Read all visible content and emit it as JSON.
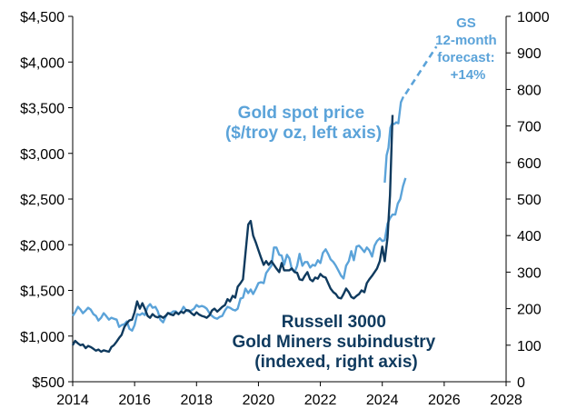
{
  "chart_data": {
    "type": "line",
    "x_unit": "year",
    "xlim": [
      2014,
      2028
    ],
    "x_ticks": [
      2014,
      2016,
      2018,
      2020,
      2022,
      2024,
      2026,
      2028
    ],
    "x_tick_labels": [
      "2014",
      "2016",
      "2018",
      "2020",
      "2022",
      "2024",
      "2026",
      "2028"
    ],
    "ylim_left": [
      500,
      4500
    ],
    "y_ticks_left": [
      500,
      1000,
      1500,
      2000,
      2500,
      3000,
      3500,
      4000,
      4500
    ],
    "y_tick_labels_left": [
      "$500",
      "$1,000",
      "$1,500",
      "$2,000",
      "$2,500",
      "$3,000",
      "$3,500",
      "$4,000",
      "$4,500"
    ],
    "ylim_right": [
      0,
      1000
    ],
    "y_ticks_right": [
      0,
      100,
      200,
      300,
      400,
      500,
      600,
      700,
      800,
      900,
      1000
    ],
    "y_tick_labels_right": [
      "0",
      "100",
      "200",
      "300",
      "400",
      "500",
      "600",
      "700",
      "800",
      "900",
      "1000"
    ],
    "series": [
      {
        "name": "gold-spot",
        "axis": "left",
        "color": "#5BA3D9",
        "label_lines": [
          "Gold spot price",
          "($/troy oz, left axis)"
        ],
        "points": [
          [
            2014.0,
            1220
          ],
          [
            2014.08,
            1260
          ],
          [
            2014.17,
            1320
          ],
          [
            2014.25,
            1290
          ],
          [
            2014.33,
            1250
          ],
          [
            2014.42,
            1280
          ],
          [
            2014.5,
            1310
          ],
          [
            2014.58,
            1290
          ],
          [
            2014.67,
            1240
          ],
          [
            2014.75,
            1220
          ],
          [
            2014.83,
            1170
          ],
          [
            2014.92,
            1200
          ],
          [
            2015.0,
            1250
          ],
          [
            2015.08,
            1220
          ],
          [
            2015.17,
            1180
          ],
          [
            2015.25,
            1200
          ],
          [
            2015.33,
            1190
          ],
          [
            2015.42,
            1180
          ],
          [
            2015.5,
            1100
          ],
          [
            2015.58,
            1120
          ],
          [
            2015.67,
            1130
          ],
          [
            2015.75,
            1160
          ],
          [
            2015.83,
            1080
          ],
          [
            2015.92,
            1060
          ],
          [
            2016.0,
            1120
          ],
          [
            2016.08,
            1240
          ],
          [
            2016.17,
            1230
          ],
          [
            2016.25,
            1250
          ],
          [
            2016.33,
            1230
          ],
          [
            2016.42,
            1320
          ],
          [
            2016.5,
            1350
          ],
          [
            2016.58,
            1310
          ],
          [
            2016.67,
            1320
          ],
          [
            2016.75,
            1270
          ],
          [
            2016.83,
            1180
          ],
          [
            2016.92,
            1150
          ],
          [
            2017.0,
            1210
          ],
          [
            2017.08,
            1250
          ],
          [
            2017.17,
            1250
          ],
          [
            2017.25,
            1270
          ],
          [
            2017.33,
            1270
          ],
          [
            2017.42,
            1240
          ],
          [
            2017.5,
            1270
          ],
          [
            2017.58,
            1320
          ],
          [
            2017.67,
            1280
          ],
          [
            2017.75,
            1270
          ],
          [
            2017.83,
            1280
          ],
          [
            2017.92,
            1300
          ],
          [
            2018.0,
            1340
          ],
          [
            2018.08,
            1320
          ],
          [
            2018.17,
            1330
          ],
          [
            2018.25,
            1320
          ],
          [
            2018.33,
            1300
          ],
          [
            2018.42,
            1250
          ],
          [
            2018.5,
            1220
          ],
          [
            2018.58,
            1200
          ],
          [
            2018.67,
            1190
          ],
          [
            2018.75,
            1210
          ],
          [
            2018.83,
            1220
          ],
          [
            2018.92,
            1280
          ],
          [
            2019.0,
            1320
          ],
          [
            2019.08,
            1310
          ],
          [
            2019.17,
            1290
          ],
          [
            2019.25,
            1280
          ],
          [
            2019.33,
            1300
          ],
          [
            2019.42,
            1410
          ],
          [
            2019.5,
            1420
          ],
          [
            2019.58,
            1520
          ],
          [
            2019.67,
            1470
          ],
          [
            2019.75,
            1510
          ],
          [
            2019.83,
            1460
          ],
          [
            2019.92,
            1520
          ],
          [
            2020.0,
            1580
          ],
          [
            2020.08,
            1590
          ],
          [
            2020.17,
            1580
          ],
          [
            2020.25,
            1690
          ],
          [
            2020.33,
            1730
          ],
          [
            2020.42,
            1770
          ],
          [
            2020.5,
            1970
          ],
          [
            2020.58,
            1970
          ],
          [
            2020.67,
            1890
          ],
          [
            2020.75,
            1880
          ],
          [
            2020.83,
            1780
          ],
          [
            2020.92,
            1890
          ],
          [
            2021.0,
            1850
          ],
          [
            2021.08,
            1730
          ],
          [
            2021.17,
            1700
          ],
          [
            2021.25,
            1770
          ],
          [
            2021.33,
            1900
          ],
          [
            2021.42,
            1770
          ],
          [
            2021.5,
            1810
          ],
          [
            2021.58,
            1810
          ],
          [
            2021.67,
            1750
          ],
          [
            2021.75,
            1780
          ],
          [
            2021.83,
            1770
          ],
          [
            2021.92,
            1830
          ],
          [
            2022.0,
            1800
          ],
          [
            2022.08,
            1910
          ],
          [
            2022.17,
            1950
          ],
          [
            2022.25,
            1900
          ],
          [
            2022.33,
            1840
          ],
          [
            2022.42,
            1810
          ],
          [
            2022.5,
            1770
          ],
          [
            2022.58,
            1720
          ],
          [
            2022.67,
            1660
          ],
          [
            2022.75,
            1630
          ],
          [
            2022.83,
            1770
          ],
          [
            2022.92,
            1820
          ],
          [
            2023.0,
            1930
          ],
          [
            2023.08,
            1830
          ],
          [
            2023.17,
            1980
          ],
          [
            2023.25,
            1990
          ],
          [
            2023.33,
            1960
          ],
          [
            2023.42,
            1920
          ],
          [
            2023.5,
            1970
          ],
          [
            2023.58,
            1940
          ],
          [
            2023.67,
            1870
          ],
          [
            2023.75,
            1990
          ],
          [
            2023.83,
            2040
          ],
          [
            2023.92,
            2070
          ],
          [
            2024.0,
            2040
          ],
          [
            2024.08,
            2050
          ],
          [
            2024.17,
            2230
          ],
          [
            2024.25,
            2290
          ],
          [
            2024.33,
            2330
          ],
          [
            2024.42,
            2330
          ],
          [
            2024.5,
            2450
          ],
          [
            2024.58,
            2500
          ],
          [
            2024.67,
            2640
          ],
          [
            2024.75,
            2730
          ]
        ],
        "label_overlay_tail": [
          [
            2024.08,
            2680
          ],
          [
            2024.14,
            2980
          ],
          [
            2024.2,
            3060
          ],
          [
            2024.26,
            3280
          ],
          [
            2024.32,
            3330
          ],
          [
            2024.38,
            3320
          ],
          [
            2024.45,
            3340
          ],
          [
            2024.52,
            3330
          ],
          [
            2024.6,
            3560
          ],
          [
            2024.68,
            3620
          ]
        ]
      },
      {
        "name": "gold-miners",
        "axis": "right",
        "color": "#0F3A5E",
        "label_lines": [
          "Russell 3000",
          "Gold Miners subindustry",
          "(indexed, right axis)"
        ],
        "points": [
          [
            2014.0,
            100
          ],
          [
            2014.08,
            112
          ],
          [
            2014.17,
            105
          ],
          [
            2014.25,
            100
          ],
          [
            2014.33,
            102
          ],
          [
            2014.42,
            92
          ],
          [
            2014.5,
            98
          ],
          [
            2014.58,
            95
          ],
          [
            2014.67,
            90
          ],
          [
            2014.75,
            85
          ],
          [
            2014.83,
            88
          ],
          [
            2014.92,
            82
          ],
          [
            2015.0,
            86
          ],
          [
            2015.08,
            84
          ],
          [
            2015.17,
            82
          ],
          [
            2015.25,
            95
          ],
          [
            2015.33,
            100
          ],
          [
            2015.42,
            110
          ],
          [
            2015.5,
            120
          ],
          [
            2015.58,
            128
          ],
          [
            2015.67,
            150
          ],
          [
            2015.75,
            160
          ],
          [
            2015.83,
            168
          ],
          [
            2015.92,
            170
          ],
          [
            2016.0,
            190
          ],
          [
            2016.08,
            220
          ],
          [
            2016.17,
            200
          ],
          [
            2016.25,
            215
          ],
          [
            2016.33,
            200
          ],
          [
            2016.42,
            180
          ],
          [
            2016.5,
            175
          ],
          [
            2016.58,
            185
          ],
          [
            2016.67,
            178
          ],
          [
            2016.75,
            176
          ],
          [
            2016.83,
            180
          ],
          [
            2016.92,
            175
          ],
          [
            2017.0,
            180
          ],
          [
            2017.08,
            188
          ],
          [
            2017.17,
            184
          ],
          [
            2017.25,
            182
          ],
          [
            2017.33,
            190
          ],
          [
            2017.42,
            185
          ],
          [
            2017.5,
            192
          ],
          [
            2017.58,
            188
          ],
          [
            2017.67,
            196
          ],
          [
            2017.75,
            195
          ],
          [
            2017.83,
            188
          ],
          [
            2017.92,
            182
          ],
          [
            2018.0,
            190
          ],
          [
            2018.08,
            184
          ],
          [
            2018.17,
            180
          ],
          [
            2018.25,
            178
          ],
          [
            2018.33,
            175
          ],
          [
            2018.42,
            182
          ],
          [
            2018.5,
            195
          ],
          [
            2018.58,
            200
          ],
          [
            2018.67,
            192
          ],
          [
            2018.75,
            198
          ],
          [
            2018.83,
            205
          ],
          [
            2018.92,
            210
          ],
          [
            2019.0,
            226
          ],
          [
            2019.08,
            220
          ],
          [
            2019.17,
            235
          ],
          [
            2019.25,
            230
          ],
          [
            2019.33,
            260
          ],
          [
            2019.42,
            270
          ],
          [
            2019.5,
            280
          ],
          [
            2019.58,
            350
          ],
          [
            2019.67,
            430
          ],
          [
            2019.75,
            440
          ],
          [
            2019.83,
            400
          ],
          [
            2019.92,
            380
          ],
          [
            2020.0,
            360
          ],
          [
            2020.08,
            340
          ],
          [
            2020.17,
            320
          ],
          [
            2020.25,
            330
          ],
          [
            2020.33,
            320
          ],
          [
            2020.42,
            330
          ],
          [
            2020.5,
            320
          ],
          [
            2020.58,
            310
          ],
          [
            2020.67,
            300
          ],
          [
            2020.75,
            325
          ],
          [
            2020.83,
            305
          ],
          [
            2020.92,
            305
          ],
          [
            2021.0,
            305
          ],
          [
            2021.08,
            310
          ],
          [
            2021.17,
            300
          ],
          [
            2021.25,
            298
          ],
          [
            2021.33,
            280
          ],
          [
            2021.42,
            278
          ],
          [
            2021.5,
            290
          ],
          [
            2021.58,
            300
          ],
          [
            2021.67,
            280
          ],
          [
            2021.75,
            275
          ],
          [
            2021.83,
            285
          ],
          [
            2021.92,
            282
          ],
          [
            2022.0,
            295
          ],
          [
            2022.08,
            288
          ],
          [
            2022.17,
            285
          ],
          [
            2022.25,
            270
          ],
          [
            2022.33,
            255
          ],
          [
            2022.42,
            245
          ],
          [
            2022.5,
            240
          ],
          [
            2022.58,
            230
          ],
          [
            2022.67,
            228
          ],
          [
            2022.75,
            240
          ],
          [
            2022.83,
            255
          ],
          [
            2022.92,
            245
          ],
          [
            2023.0,
            232
          ],
          [
            2023.08,
            228
          ],
          [
            2023.17,
            235
          ],
          [
            2023.25,
            240
          ],
          [
            2023.33,
            250
          ],
          [
            2023.42,
            245
          ],
          [
            2023.5,
            270
          ],
          [
            2023.58,
            280
          ],
          [
            2023.67,
            290
          ],
          [
            2023.75,
            300
          ],
          [
            2023.83,
            310
          ],
          [
            2023.92,
            330
          ],
          [
            2024.0,
            370
          ],
          [
            2024.08,
            330
          ],
          [
            2024.17,
            395
          ],
          [
            2024.25,
            510
          ],
          [
            2024.33,
            730
          ]
        ]
      }
    ],
    "forecast": {
      "points": [
        [
          2024.75,
          3650
        ],
        [
          2025.75,
          4170
        ]
      ],
      "label_lines": [
        "GS",
        "12-month",
        "forecast:",
        "+14%"
      ]
    }
  }
}
